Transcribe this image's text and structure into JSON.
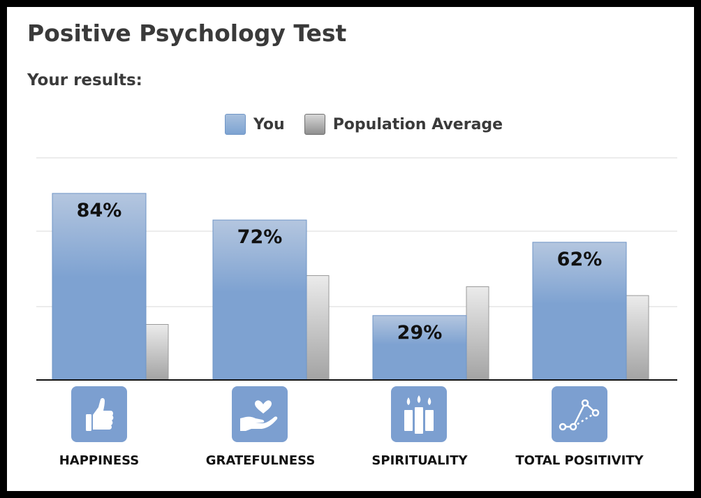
{
  "page": {
    "title": "Positive Psychology Test",
    "subtitle": "Your results:"
  },
  "colors": {
    "you_bar_top": "#b4c6df",
    "you_bar_bottom": "#7ea2d1",
    "population_bar_top": "#ebebeb",
    "population_bar_bottom": "#a3a3a3",
    "icon_tile": "#7c9fd0",
    "gridline": "#d8d8d8",
    "baseline": "#111111"
  },
  "chart_data": {
    "type": "bar",
    "title": "",
    "legend": {
      "placement": "top-center",
      "entries": [
        "You",
        "Population Average"
      ]
    },
    "categories": [
      "HAPPINESS",
      "GRATEFULNESS",
      "SPIRITUALITY",
      "TOTAL POSITIVITY"
    ],
    "category_icons": [
      "thumbs-up-icon",
      "heart-in-hand-icon",
      "candles-icon",
      "connected-dots-icon"
    ],
    "series": [
      {
        "name": "You",
        "values": [
          84,
          72,
          29,
          62
        ],
        "labels": [
          "84%",
          "72%",
          "29%",
          "62%"
        ]
      },
      {
        "name": "Population Average",
        "values": [
          25,
          47,
          42,
          38
        ]
      }
    ],
    "ylim": [
      0,
      100
    ],
    "gridlines": [
      33,
      67,
      100
    ],
    "grid": true,
    "xlabel": "",
    "ylabel": ""
  }
}
